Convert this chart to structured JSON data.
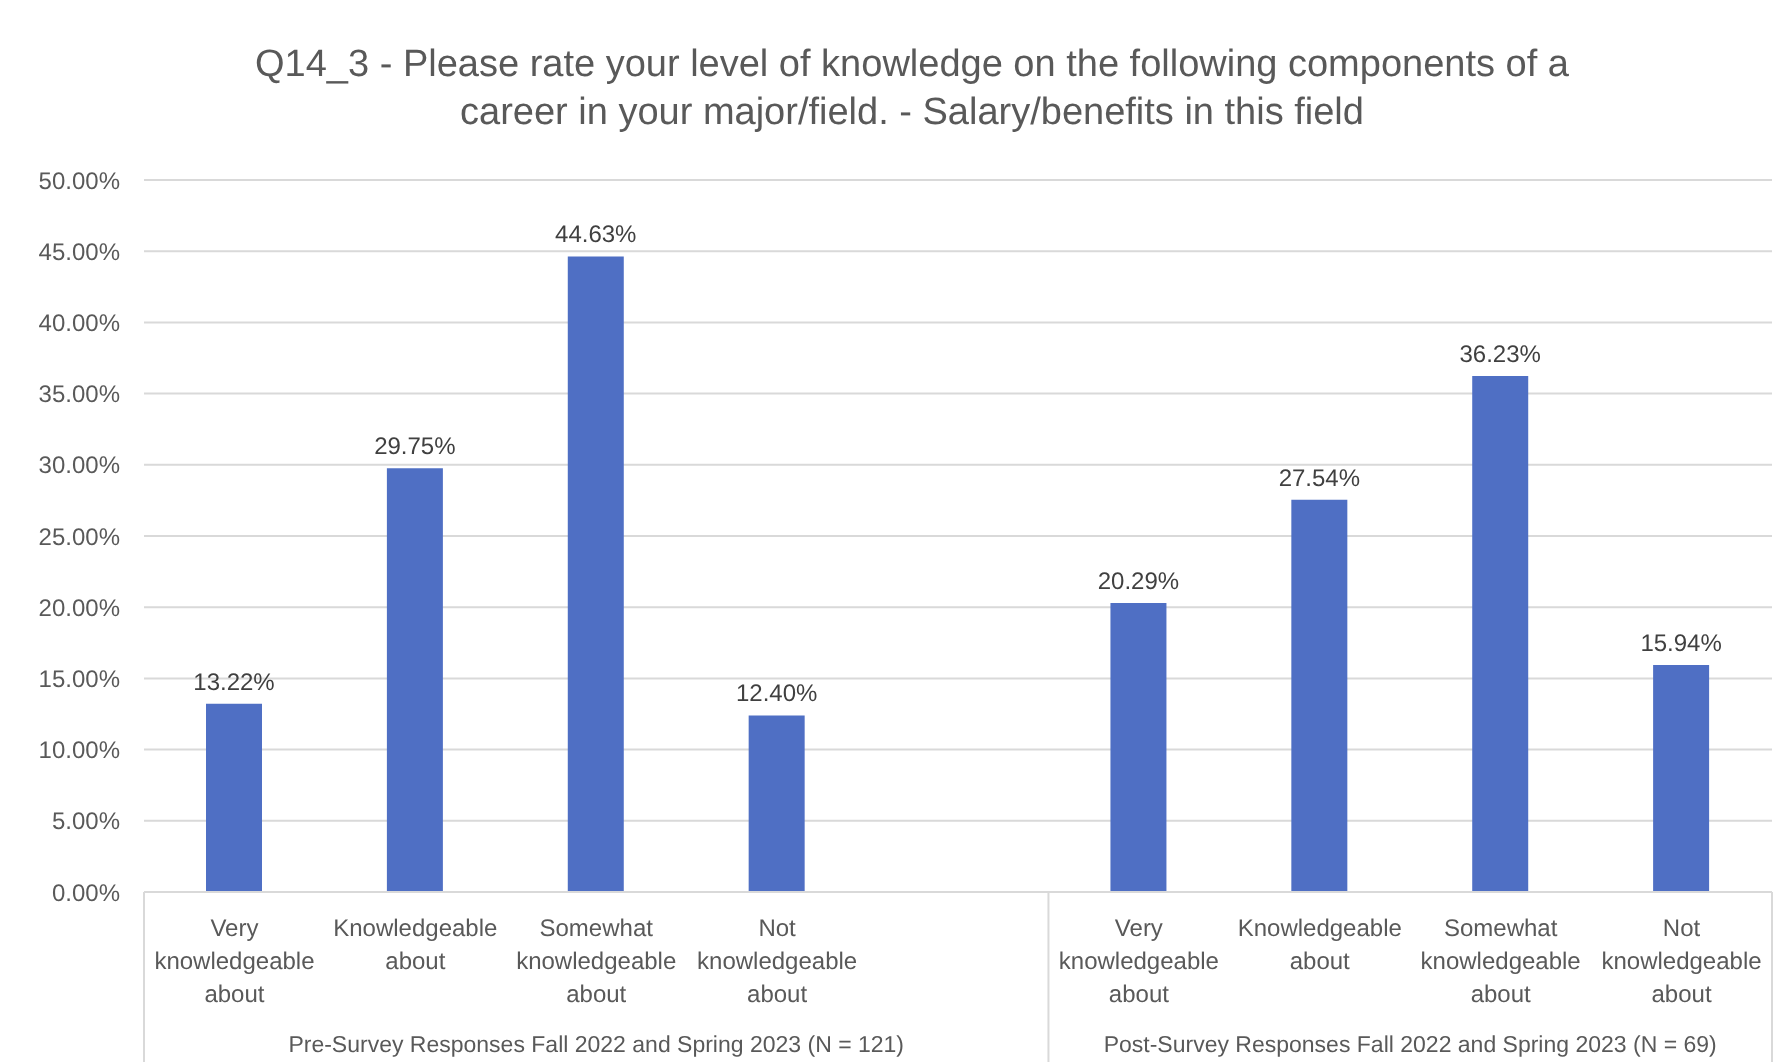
{
  "chart_data": {
    "type": "bar",
    "title": "Q14_3 - Please rate your level of knowledge on the following components of a career in your major/field. - Salary/benefits in this field",
    "categories": [
      "Very knowledgeable about",
      "Knowledgeable about",
      "Somewhat knowledgeable about",
      "Not knowledgeable about",
      null,
      "Very knowledgeable about",
      "Knowledgeable about",
      "Somewhat knowledgeable about",
      "Not knowledgeable about"
    ],
    "values": [
      13.22,
      29.75,
      44.63,
      12.4,
      null,
      20.29,
      27.54,
      36.23,
      15.94
    ],
    "value_labels": [
      "13.22%",
      "29.75%",
      "44.63%",
      "12.40%",
      null,
      "20.29%",
      "27.54%",
      "36.23%",
      "15.94%"
    ],
    "color": "#4f6fc4",
    "ylim": [
      0,
      50
    ],
    "yticks": [
      {
        "value": 0,
        "label": "0.00%"
      },
      {
        "value": 5,
        "label": "5.00%"
      },
      {
        "value": 10,
        "label": "10.00%"
      },
      {
        "value": 15,
        "label": "15.00%"
      },
      {
        "value": 20,
        "label": "20.00%"
      },
      {
        "value": 25,
        "label": "25.00%"
      },
      {
        "value": 30,
        "label": "30.00%"
      },
      {
        "value": 35,
        "label": "35.00%"
      },
      {
        "value": 40,
        "label": "40.00%"
      },
      {
        "value": 45,
        "label": "45.00%"
      },
      {
        "value": 50,
        "label": "50.00%"
      }
    ],
    "grid": "y",
    "annotations": [
      "Pre-Survey Responses Fall 2022 and Spring 2023 (N = 121)",
      "Post-Survey Responses Fall 2022 and Spring 2023 (N = 69)"
    ]
  }
}
